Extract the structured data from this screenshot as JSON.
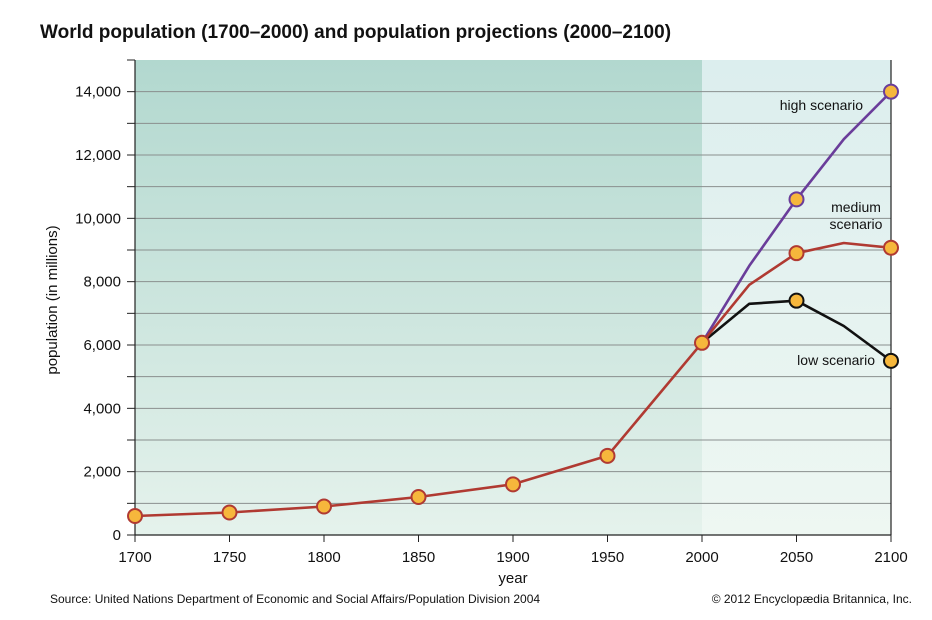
{
  "chart_data": {
    "type": "line",
    "title": "World population (1700–2000) and population projections (2000–2100)",
    "xlabel": "year",
    "ylabel": "population (in millions)",
    "xlim": [
      1700,
      2100
    ],
    "ylim": [
      0,
      15000
    ],
    "x_ticks": [
      1700,
      1750,
      1800,
      1850,
      1900,
      1950,
      2000,
      2050,
      2100
    ],
    "y_ticks": [
      0,
      2000,
      4000,
      6000,
      8000,
      10000,
      12000,
      14000
    ],
    "y_tick_labels": [
      "0",
      "2,000",
      "4,000",
      "6,000",
      "8,000",
      "10,000",
      "12,000",
      "14,000"
    ],
    "grid": true,
    "historical_region": [
      1700,
      2000
    ],
    "series": [
      {
        "name": "historical and medium scenario",
        "label_lines": [
          "medium",
          "scenario"
        ],
        "color": "#b03a32",
        "x": [
          1700,
          1750,
          1800,
          1850,
          1900,
          1950,
          2000,
          2025,
          2050,
          2075,
          2100
        ],
        "values": [
          600,
          710,
          900,
          1200,
          1600,
          2500,
          6070,
          7900,
          8900,
          9220,
          9070
        ],
        "marker_x": [
          1700,
          1750,
          1800,
          1850,
          1900,
          1950,
          2000,
          2050,
          2100
        ]
      },
      {
        "name": "high scenario",
        "label_lines": [
          "high scenario"
        ],
        "color": "#6a3d9a",
        "x": [
          2000,
          2025,
          2050,
          2075,
          2100
        ],
        "values": [
          6070,
          8500,
          10600,
          12500,
          14000
        ],
        "marker_x": [
          2050,
          2100
        ]
      },
      {
        "name": "low scenario",
        "label_lines": [
          "low scenario"
        ],
        "color": "#111111",
        "x": [
          2000,
          2025,
          2050,
          2075,
          2100
        ],
        "values": [
          6070,
          7300,
          7400,
          6600,
          5500
        ],
        "marker_x": [
          2050,
          2100
        ]
      }
    ]
  },
  "source": "Source: United Nations Department of Economic and Social Affairs/Population Division 2004",
  "copyright": "© 2012 Encyclopædia Britannica, Inc."
}
